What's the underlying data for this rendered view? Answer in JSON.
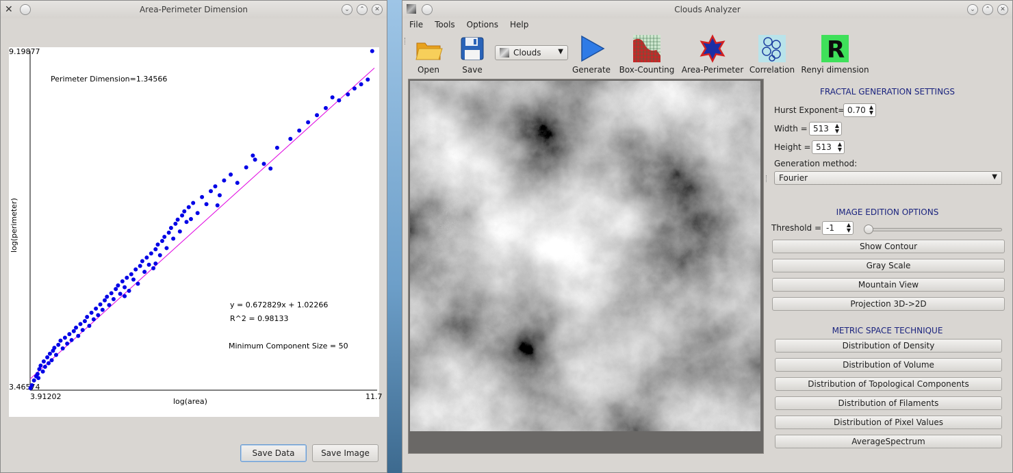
{
  "left_window": {
    "title": "Area-Perimeter Dimension",
    "buttons": {
      "save_data": "Save Data",
      "save_image": "Save Image"
    }
  },
  "chart_data": {
    "type": "scatter",
    "xlabel": "log(area)",
    "ylabel": "log(perimeter)",
    "x_min_label": "3.91202",
    "x_max_label": "11.7",
    "y_max_label": "9.19877",
    "y_min_label": "3.46574",
    "xlim": [
      3.91202,
      11.7
    ],
    "ylim": [
      3.46574,
      9.19877
    ],
    "annotations": {
      "dimension": "Perimeter Dimension=1.34566",
      "equation": "y = 0.672829x + 1.02266",
      "r2": "R^2 = 0.98133",
      "min_component": "Minimum Component Size = 50"
    },
    "fit_line": {
      "slope": 0.672829,
      "intercept": 1.02266
    },
    "points": [
      [
        3.92,
        3.5
      ],
      [
        3.95,
        3.55
      ],
      [
        4.0,
        3.63
      ],
      [
        4.05,
        3.7
      ],
      [
        4.08,
        3.74
      ],
      [
        4.1,
        3.67
      ],
      [
        4.12,
        3.82
      ],
      [
        4.15,
        3.88
      ],
      [
        4.2,
        3.78
      ],
      [
        4.22,
        3.95
      ],
      [
        4.25,
        3.86
      ],
      [
        4.3,
        4.02
      ],
      [
        4.33,
        3.92
      ],
      [
        4.36,
        4.08
      ],
      [
        4.4,
        3.97
      ],
      [
        4.43,
        4.13
      ],
      [
        4.46,
        4.18
      ],
      [
        4.5,
        4.06
      ],
      [
        4.55,
        4.23
      ],
      [
        4.6,
        4.3
      ],
      [
        4.65,
        4.17
      ],
      [
        4.7,
        4.35
      ],
      [
        4.75,
        4.25
      ],
      [
        4.8,
        4.41
      ],
      [
        4.85,
        4.31
      ],
      [
        4.9,
        4.46
      ],
      [
        4.95,
        4.52
      ],
      [
        5.0,
        4.38
      ],
      [
        5.05,
        4.58
      ],
      [
        5.1,
        4.48
      ],
      [
        5.15,
        4.63
      ],
      [
        5.2,
        4.7
      ],
      [
        5.25,
        4.55
      ],
      [
        5.3,
        4.77
      ],
      [
        5.35,
        4.66
      ],
      [
        5.4,
        4.84
      ],
      [
        5.45,
        4.73
      ],
      [
        5.5,
        4.91
      ],
      [
        5.55,
        4.82
      ],
      [
        5.6,
        4.98
      ],
      [
        5.65,
        5.04
      ],
      [
        5.7,
        4.9
      ],
      [
        5.75,
        5.1
      ],
      [
        5.8,
        5.0
      ],
      [
        5.85,
        5.17
      ],
      [
        5.9,
        5.23
      ],
      [
        5.95,
        5.09
      ],
      [
        6.0,
        5.3
      ],
      [
        6.05,
        5.2
      ],
      [
        6.1,
        5.36
      ],
      [
        6.15,
        5.14
      ],
      [
        6.2,
        5.42
      ],
      [
        6.25,
        5.33
      ],
      [
        6.3,
        5.5
      ],
      [
        6.35,
        5.26
      ],
      [
        6.4,
        5.56
      ],
      [
        6.45,
        5.64
      ],
      [
        6.5,
        5.46
      ],
      [
        6.55,
        5.7
      ],
      [
        6.6,
        5.58
      ],
      [
        6.65,
        5.77
      ],
      [
        6.7,
        5.52
      ],
      [
        6.75,
        5.84
      ],
      [
        6.8,
        5.92
      ],
      [
        6.85,
        5.74
      ],
      [
        6.9,
        5.98
      ],
      [
        6.95,
        6.05
      ],
      [
        7.0,
        5.86
      ],
      [
        7.05,
        6.12
      ],
      [
        7.1,
        6.2
      ],
      [
        7.15,
        6.02
      ],
      [
        7.2,
        6.27
      ],
      [
        7.25,
        6.34
      ],
      [
        7.3,
        6.14
      ],
      [
        7.35,
        6.41
      ],
      [
        7.4,
        6.48
      ],
      [
        7.45,
        6.3
      ],
      [
        7.5,
        6.55
      ],
      [
        7.6,
        6.62
      ],
      [
        7.7,
        6.45
      ],
      [
        7.8,
        6.72
      ],
      [
        7.9,
        6.6
      ],
      [
        8.0,
        6.82
      ],
      [
        8.1,
        6.9
      ],
      [
        8.2,
        6.75
      ],
      [
        8.3,
        7.0
      ],
      [
        8.45,
        7.1
      ],
      [
        8.6,
        6.96
      ],
      [
        8.8,
        7.22
      ],
      [
        9.0,
        7.35
      ],
      [
        9.2,
        7.28
      ],
      [
        9.5,
        7.55
      ],
      [
        9.8,
        7.7
      ],
      [
        10.0,
        7.84
      ],
      [
        10.2,
        7.98
      ],
      [
        10.4,
        8.1
      ],
      [
        10.6,
        8.22
      ],
      [
        10.9,
        8.35
      ],
      [
        11.1,
        8.45
      ],
      [
        11.25,
        8.55
      ],
      [
        11.4,
        8.62
      ],
      [
        11.55,
        8.7
      ],
      [
        11.65,
        9.18
      ],
      [
        10.75,
        8.4
      ],
      [
        9.35,
        7.2
      ],
      [
        8.95,
        7.42
      ],
      [
        8.15,
        6.58
      ],
      [
        7.55,
        6.35
      ],
      [
        6.75,
        5.6
      ],
      [
        6.05,
        5.05
      ]
    ]
  },
  "right_window": {
    "title": "Clouds Analyzer",
    "menu": [
      "File",
      "Tools",
      "Options",
      "Help"
    ],
    "toolbar": {
      "open": "Open",
      "save": "Save",
      "combo_value": "Clouds",
      "generate": "Generate",
      "box_counting": "Box-Counting",
      "area_perimeter": "Area-Perimeter",
      "correlation": "Correlation",
      "renyi": "Renyi dimension",
      "renyi_letter": "R"
    },
    "fractal_settings": {
      "title": "FRACTAL GENERATION SETTINGS",
      "hurst_label": "Hurst Exponent=",
      "hurst_value": "0.70",
      "width_label": "Width =",
      "width_value": "513",
      "height_label": "Height =",
      "height_value": "513",
      "method_label": "Generation method:",
      "method_value": "Fourier"
    },
    "image_edition": {
      "title": "IMAGE EDITION OPTIONS",
      "threshold_label": "Threshold =",
      "threshold_value": "-1",
      "buttons": [
        "Show Contour",
        "Gray Scale",
        "Mountain View",
        "Projection 3D->2D"
      ]
    },
    "metric_space": {
      "title": "METRIC SPACE TECHNIQUE",
      "buttons": [
        "Distribution of Density",
        "Distribution of Volume",
        "Distribution of Topological Components",
        "Distribution of Filaments",
        "Distribution of Pixel Values",
        "AverageSpectrum"
      ]
    }
  }
}
